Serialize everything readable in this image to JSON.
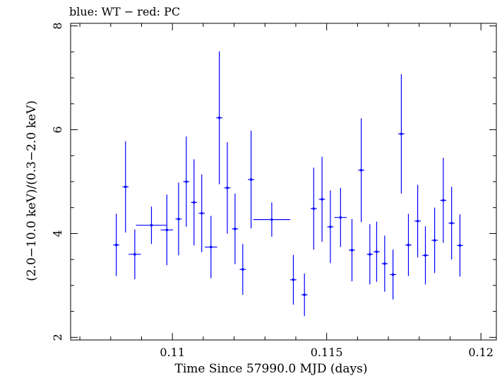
{
  "chart_data": {
    "type": "scatter",
    "title": "blue: WT − red: PC",
    "xlabel": "Time Since 57990.0 MJD (days)",
    "ylabel": "(2.0−10.0 keV)/(0.3−2.0 keV)",
    "xlim": [
      0.1067,
      0.1205
    ],
    "ylim": [
      1.95,
      8.05
    ],
    "xticks": [
      {
        "value": 0.11,
        "label": "0.11"
      },
      {
        "value": 0.115,
        "label": "0.115"
      },
      {
        "value": 0.12,
        "label": "0.12"
      }
    ],
    "yticks": [
      {
        "value": 2,
        "label": "2"
      },
      {
        "value": 4,
        "label": "4"
      },
      {
        "value": 6,
        "label": "6"
      },
      {
        "value": 8,
        "label": "8"
      }
    ],
    "series": [
      {
        "color": "#0000ff",
        "points": [
          {
            "x": 0.10818,
            "xerr": 0.0001,
            "y": 3.78,
            "yerr_lo": 0.6,
            "yerr_hi": 0.6
          },
          {
            "x": 0.10848,
            "xerr": 0.0001,
            "y": 4.9,
            "yerr_lo": 0.88,
            "yerr_hi": 0.88
          },
          {
            "x": 0.10878,
            "xerr": 0.0002,
            "y": 3.6,
            "yerr_lo": 0.48,
            "yerr_hi": 0.48
          },
          {
            "x": 0.10932,
            "xerr": 0.0005,
            "y": 4.16,
            "yerr_lo": 0.36,
            "yerr_hi": 0.36
          },
          {
            "x": 0.10982,
            "xerr": 0.0002,
            "y": 4.07,
            "yerr_lo": 0.68,
            "yerr_hi": 0.68
          },
          {
            "x": 0.1102,
            "xerr": 0.0001,
            "y": 4.28,
            "yerr_lo": 0.7,
            "yerr_hi": 0.7
          },
          {
            "x": 0.11045,
            "xerr": 0.0001,
            "y": 5.0,
            "yerr_lo": 0.87,
            "yerr_hi": 0.87
          },
          {
            "x": 0.1107,
            "xerr": 0.0001,
            "y": 4.6,
            "yerr_lo": 0.83,
            "yerr_hi": 0.83
          },
          {
            "x": 0.11095,
            "xerr": 0.0001,
            "y": 4.39,
            "yerr_lo": 0.75,
            "yerr_hi": 0.75
          },
          {
            "x": 0.11125,
            "xerr": 0.0002,
            "y": 3.74,
            "yerr_lo": 0.6,
            "yerr_hi": 0.6
          },
          {
            "x": 0.11152,
            "xerr": 0.0001,
            "y": 6.23,
            "yerr_lo": 1.28,
            "yerr_hi": 1.28
          },
          {
            "x": 0.11178,
            "xerr": 0.0001,
            "y": 4.88,
            "yerr_lo": 0.88,
            "yerr_hi": 0.88
          },
          {
            "x": 0.11203,
            "xerr": 0.0001,
            "y": 4.09,
            "yerr_lo": 0.68,
            "yerr_hi": 0.68
          },
          {
            "x": 0.11228,
            "xerr": 0.0001,
            "y": 3.31,
            "yerr_lo": 0.49,
            "yerr_hi": 0.49
          },
          {
            "x": 0.11255,
            "xerr": 0.0001,
            "y": 5.04,
            "yerr_lo": 0.94,
            "yerr_hi": 0.94
          },
          {
            "x": 0.11322,
            "xerr": 0.0006,
            "y": 4.27,
            "yerr_lo": 0.33,
            "yerr_hi": 0.33
          },
          {
            "x": 0.11392,
            "xerr": 0.0001,
            "y": 3.11,
            "yerr_lo": 0.48,
            "yerr_hi": 0.48
          },
          {
            "x": 0.11428,
            "xerr": 0.0001,
            "y": 2.82,
            "yerr_lo": 0.41,
            "yerr_hi": 0.41
          },
          {
            "x": 0.11458,
            "xerr": 0.0001,
            "y": 4.48,
            "yerr_lo": 0.79,
            "yerr_hi": 0.79
          },
          {
            "x": 0.11485,
            "xerr": 0.0001,
            "y": 4.66,
            "yerr_lo": 0.82,
            "yerr_hi": 0.82
          },
          {
            "x": 0.11512,
            "xerr": 0.0001,
            "y": 4.13,
            "yerr_lo": 0.7,
            "yerr_hi": 0.7
          },
          {
            "x": 0.11545,
            "xerr": 0.0002,
            "y": 4.31,
            "yerr_lo": 0.57,
            "yerr_hi": 0.57
          },
          {
            "x": 0.11582,
            "xerr": 0.0001,
            "y": 3.68,
            "yerr_lo": 0.6,
            "yerr_hi": 0.6
          },
          {
            "x": 0.11612,
            "xerr": 0.0001,
            "y": 5.22,
            "yerr_lo": 1.0,
            "yerr_hi": 1.0
          },
          {
            "x": 0.1164,
            "xerr": 0.0001,
            "y": 3.6,
            "yerr_lo": 0.58,
            "yerr_hi": 0.58
          },
          {
            "x": 0.11662,
            "xerr": 0.0001,
            "y": 3.65,
            "yerr_lo": 0.58,
            "yerr_hi": 0.58
          },
          {
            "x": 0.11688,
            "xerr": 0.0001,
            "y": 3.42,
            "yerr_lo": 0.54,
            "yerr_hi": 0.54
          },
          {
            "x": 0.11715,
            "xerr": 0.0001,
            "y": 3.21,
            "yerr_lo": 0.48,
            "yerr_hi": 0.48
          },
          {
            "x": 0.11742,
            "xerr": 0.0001,
            "y": 5.92,
            "yerr_lo": 1.15,
            "yerr_hi": 1.15
          },
          {
            "x": 0.11765,
            "xerr": 0.0001,
            "y": 3.78,
            "yerr_lo": 0.6,
            "yerr_hi": 0.6
          },
          {
            "x": 0.11795,
            "xerr": 0.0001,
            "y": 4.24,
            "yerr_lo": 0.7,
            "yerr_hi": 0.7
          },
          {
            "x": 0.1182,
            "xerr": 0.0001,
            "y": 3.58,
            "yerr_lo": 0.56,
            "yerr_hi": 0.56
          },
          {
            "x": 0.1185,
            "xerr": 0.0001,
            "y": 3.87,
            "yerr_lo": 0.63,
            "yerr_hi": 0.63
          },
          {
            "x": 0.11878,
            "xerr": 0.0001,
            "y": 4.64,
            "yerr_lo": 0.82,
            "yerr_hi": 0.82
          },
          {
            "x": 0.11905,
            "xerr": 0.0001,
            "y": 4.2,
            "yerr_lo": 0.7,
            "yerr_hi": 0.7
          },
          {
            "x": 0.11932,
            "xerr": 0.0001,
            "y": 3.77,
            "yerr_lo": 0.6,
            "yerr_hi": 0.6
          }
        ]
      }
    ]
  }
}
